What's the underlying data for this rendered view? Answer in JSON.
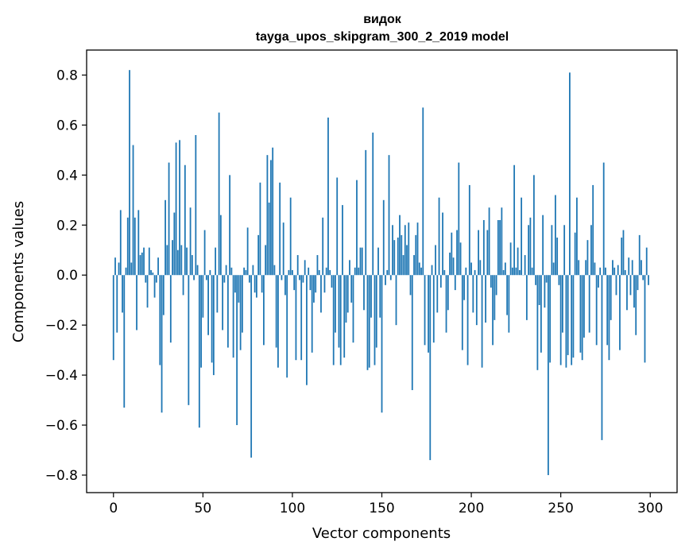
{
  "chart_data": {
    "type": "bar",
    "title": "видок",
    "subtitle": "tayga_upos_skipgram_300_2_2019 model",
    "xlabel": "Vector components",
    "ylabel": "Components values",
    "xlim": [
      -15,
      315
    ],
    "ylim": [
      -0.87,
      0.9
    ],
    "x_ticks": [
      0,
      50,
      100,
      150,
      200,
      250,
      300
    ],
    "x_tick_labels": [
      "0",
      "50",
      "100",
      "150",
      "200",
      "250",
      "300"
    ],
    "y_ticks": [
      -0.8,
      -0.6,
      -0.4,
      -0.2,
      0.0,
      0.2,
      0.4,
      0.6,
      0.8
    ],
    "y_tick_labels": [
      "−0.8",
      "−0.6",
      "−0.4",
      "−0.2",
      "0.0",
      "0.2",
      "0.4",
      "0.6",
      "0.8"
    ],
    "bar_color": "#1f77b4",
    "grid": false,
    "x": "0..299",
    "values": [
      -0.34,
      0.07,
      -0.23,
      0.05,
      0.26,
      -0.15,
      -0.53,
      0.03,
      0.23,
      0.82,
      0.05,
      0.52,
      0.23,
      -0.22,
      0.26,
      0.08,
      0.09,
      0.11,
      -0.03,
      -0.13,
      0.11,
      0.02,
      0.01,
      -0.09,
      -0.03,
      0.07,
      -0.36,
      -0.55,
      -0.16,
      0.3,
      0.12,
      0.45,
      -0.27,
      0.14,
      0.25,
      0.53,
      0.1,
      0.54,
      0.12,
      -0.08,
      0.44,
      0.11,
      -0.52,
      0.27,
      0.08,
      -0.02,
      0.56,
      0.04,
      -0.61,
      -0.37,
      -0.17,
      0.18,
      -0.02,
      -0.24,
      0.02,
      -0.35,
      -0.4,
      0.11,
      -0.15,
      0.65,
      0.24,
      -0.22,
      -0.03,
      0.04,
      -0.29,
      0.4,
      0.03,
      -0.33,
      -0.07,
      -0.6,
      -0.11,
      -0.3,
      -0.23,
      0.03,
      0.02,
      0.19,
      -0.03,
      -0.73,
      0.04,
      -0.07,
      -0.09,
      0.16,
      0.37,
      -0.07,
      -0.28,
      0.12,
      0.48,
      0.29,
      0.46,
      0.51,
      0.04,
      -0.29,
      -0.37,
      0.37,
      -0.02,
      0.21,
      -0.08,
      -0.41,
      0.02,
      0.31,
      0.02,
      -0.06,
      -0.34,
      0.08,
      -0.02,
      -0.34,
      -0.03,
      0.06,
      -0.44,
      0.03,
      -0.06,
      -0.31,
      -0.11,
      -0.07,
      0.08,
      0.02,
      -0.15,
      0.23,
      -0.07,
      0.03,
      0.63,
      0.02,
      -0.05,
      -0.36,
      -0.23,
      0.39,
      -0.29,
      -0.36,
      0.28,
      -0.33,
      -0.19,
      -0.15,
      0.06,
      -0.11,
      -0.27,
      0.03,
      0.38,
      0.03,
      0.11,
      0.11,
      -0.14,
      0.5,
      -0.38,
      -0.37,
      -0.17,
      0.57,
      -0.36,
      -0.29,
      0.11,
      -0.17,
      -0.55,
      0.3,
      -0.04,
      0.02,
      0.48,
      -0.02,
      0.2,
      0.14,
      -0.2,
      0.15,
      0.24,
      0.16,
      0.08,
      0.2,
      0.12,
      0.21,
      -0.08,
      -0.46,
      0.08,
      0.16,
      0.21,
      0.05,
      0.03,
      0.67,
      -0.28,
      0.0,
      -0.31,
      -0.74,
      0.04,
      -0.27,
      0.12,
      -0.15,
      0.31,
      -0.05,
      0.25,
      0.02,
      -0.23,
      -0.14,
      0.09,
      0.17,
      0.07,
      -0.06,
      0.18,
      0.45,
      0.13,
      -0.3,
      -0.1,
      0.03,
      -0.36,
      0.36,
      0.05,
      -0.15,
      0.02,
      -0.2,
      0.18,
      0.06,
      -0.37,
      0.22,
      -0.19,
      0.18,
      0.27,
      -0.05,
      -0.28,
      -0.18,
      -0.08,
      0.22,
      0.22,
      0.27,
      0.02,
      0.05,
      -0.16,
      -0.23,
      0.13,
      0.03,
      0.44,
      0.03,
      0.11,
      0.02,
      0.31,
      0.0,
      0.08,
      -0.18,
      0.2,
      0.23,
      0.03,
      0.4,
      -0.04,
      -0.38,
      -0.12,
      -0.31,
      0.24,
      -0.13,
      -0.03,
      -0.8,
      -0.35,
      0.2,
      0.05,
      0.32,
      0.15,
      -0.04,
      -0.36,
      -0.23,
      0.2,
      -0.37,
      -0.32,
      0.81,
      -0.36,
      -0.33,
      0.17,
      0.31,
      0.06,
      -0.31,
      -0.34,
      -0.25,
      0.06,
      0.14,
      -0.23,
      0.2,
      0.36,
      0.05,
      -0.28,
      -0.05,
      0.03,
      -0.66,
      0.45,
      0.03,
      -0.28,
      -0.34,
      -0.18,
      0.06,
      0.03,
      -0.08,
      0.04,
      -0.3,
      0.15,
      0.18,
      0.02,
      -0.14,
      0.07,
      -0.08,
      0.06,
      -0.13,
      -0.24,
      -0.06,
      0.16,
      0.06,
      -0.02,
      -0.35,
      0.11,
      -0.04
    ]
  }
}
